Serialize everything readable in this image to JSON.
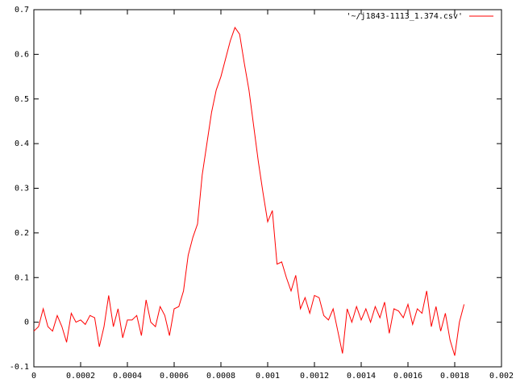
{
  "chart_data": {
    "type": "line",
    "series": [
      {
        "name": "'~/j1843-1113_1.374.csv'",
        "color": "#ff0000",
        "x": [
          0,
          2e-05,
          4e-05,
          6e-05,
          8e-05,
          0.0001,
          0.00012,
          0.00014,
          0.00016,
          0.00018,
          0.0002,
          0.00022,
          0.00024,
          0.00026,
          0.00028,
          0.0003,
          0.00032,
          0.00034,
          0.00036,
          0.00038,
          0.0004,
          0.00042,
          0.00044,
          0.00046,
          0.00048,
          0.0005,
          0.00052,
          0.00054,
          0.00056,
          0.00058,
          0.0006,
          0.00062,
          0.00064,
          0.00066,
          0.00068,
          0.0007,
          0.00072,
          0.00074,
          0.00076,
          0.00078,
          0.0008,
          0.00082,
          0.00084,
          0.00086,
          0.00088,
          0.0009,
          0.00092,
          0.00094,
          0.00096,
          0.00098,
          0.001,
          0.00102,
          0.00104,
          0.00106,
          0.00108,
          0.0011,
          0.00112,
          0.00114,
          0.00116,
          0.00118,
          0.0012,
          0.00122,
          0.00124,
          0.00126,
          0.00128,
          0.0013,
          0.00132,
          0.00134,
          0.00136,
          0.00138,
          0.0014,
          0.00142,
          0.00144,
          0.00146,
          0.00148,
          0.0015,
          0.00152,
          0.00154,
          0.00156,
          0.00158,
          0.0016,
          0.00162,
          0.00164,
          0.00166,
          0.00168,
          0.0017,
          0.00172,
          0.00174,
          0.00176,
          0.00178,
          0.0018,
          0.00182,
          0.00184
        ],
        "values": [
          -0.02,
          -0.01,
          0.03,
          -0.01,
          -0.02,
          0.015,
          -0.01,
          -0.045,
          0.02,
          0.0,
          0.005,
          -0.005,
          0.015,
          0.01,
          -0.055,
          -0.01,
          0.06,
          -0.01,
          0.03,
          -0.035,
          0.005,
          0.005,
          0.015,
          -0.03,
          0.05,
          0.0,
          -0.01,
          0.035,
          0.015,
          -0.03,
          0.03,
          0.035,
          0.07,
          0.15,
          0.19,
          0.22,
          0.33,
          0.4,
          0.47,
          0.52,
          0.55,
          0.59,
          0.63,
          0.66,
          0.645,
          0.58,
          0.52,
          0.44,
          0.36,
          0.29,
          0.225,
          0.25,
          0.13,
          0.135,
          0.1,
          0.07,
          0.105,
          0.03,
          0.055,
          0.02,
          0.06,
          0.055,
          0.015,
          0.005,
          0.03,
          -0.02,
          -0.07,
          0.03,
          0.0,
          0.035,
          0.005,
          0.03,
          0.0,
          0.035,
          0.01,
          0.045,
          -0.025,
          0.03,
          0.025,
          0.01,
          0.04,
          -0.005,
          0.03,
          0.02,
          0.07,
          -0.01,
          0.035,
          -0.02,
          0.02,
          -0.04,
          -0.075,
          0.0,
          0.04
        ]
      }
    ],
    "xlim": [
      0,
      0.002
    ],
    "xticks": [
      0,
      0.0002,
      0.0004,
      0.0006,
      0.0008,
      0.001,
      0.0012,
      0.0014,
      0.0016,
      0.0018,
      0.002
    ],
    "ylim": [
      -0.1,
      0.7
    ],
    "yticks": [
      -0.1,
      0,
      0.1,
      0.2,
      0.3,
      0.4,
      0.5,
      0.6,
      0.7
    ],
    "grid": false,
    "legend": "top-right"
  }
}
